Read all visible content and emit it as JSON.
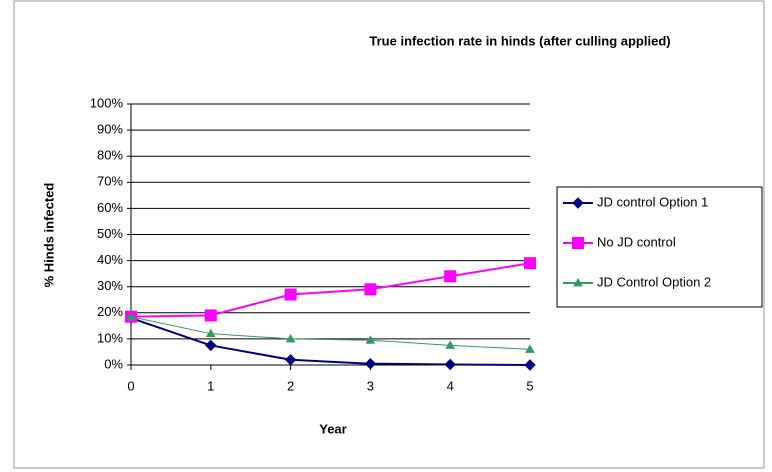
{
  "chart_data": {
    "type": "line",
    "title": "True infection rate in hinds (after culling applied)",
    "xlabel": "Year",
    "ylabel": "% Hinds infected",
    "x": [
      0,
      1,
      2,
      3,
      4,
      5
    ],
    "xlim": [
      0,
      5
    ],
    "xticks": [
      0,
      1,
      2,
      3,
      4,
      5
    ],
    "ylim": [
      0,
      100
    ],
    "yticks": [
      {
        "value": 0,
        "label": "0%"
      },
      {
        "value": 10,
        "label": "10%"
      },
      {
        "value": 20,
        "label": "20%"
      },
      {
        "value": 30,
        "label": "30%"
      },
      {
        "value": 40,
        "label": "40%"
      },
      {
        "value": 50,
        "label": "50%"
      },
      {
        "value": 60,
        "label": "60%"
      },
      {
        "value": 70,
        "label": "70%"
      },
      {
        "value": 80,
        "label": "80%"
      },
      {
        "value": 90,
        "label": "90%"
      },
      {
        "value": 100,
        "label": "100%"
      }
    ],
    "grid": true,
    "legend": "right",
    "series": [
      {
        "name": "JD control Option 1",
        "color": "#000080",
        "marker": "diamond",
        "values": [
          18,
          7.5,
          2,
          0.5,
          0.2,
          0
        ]
      },
      {
        "name": "No JD control",
        "color": "#ff00ff",
        "marker": "square",
        "values": [
          18.5,
          19,
          27,
          29,
          34,
          39
        ]
      },
      {
        "name": "JD Control Option 2",
        "color": "#339966",
        "marker": "triangle",
        "values": [
          18.5,
          12,
          10,
          9.5,
          7.5,
          6
        ]
      }
    ]
  }
}
